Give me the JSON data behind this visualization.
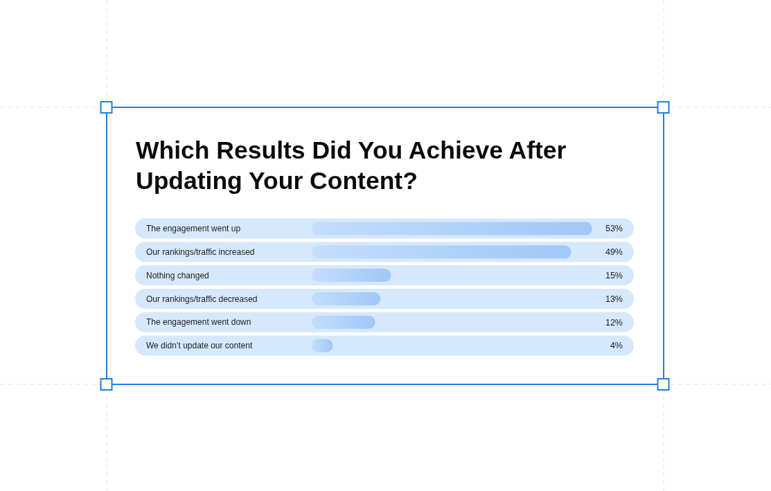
{
  "chart_data": {
    "type": "bar",
    "orientation": "horizontal",
    "title": "Which Results Did You Achieve After Updating Your Content?",
    "categories": [
      "The engagement went up",
      "Our rankings/traffic increased",
      "Nothing changed",
      "Our rankings/traffic decreased",
      "The engagement went down",
      "We didn’t update our content"
    ],
    "values": [
      53,
      49,
      15,
      13,
      12,
      4
    ],
    "value_labels": [
      "53%",
      "49%",
      "15%",
      "13%",
      "12%",
      "4%"
    ],
    "color": "#a0c8f8"
  }
}
